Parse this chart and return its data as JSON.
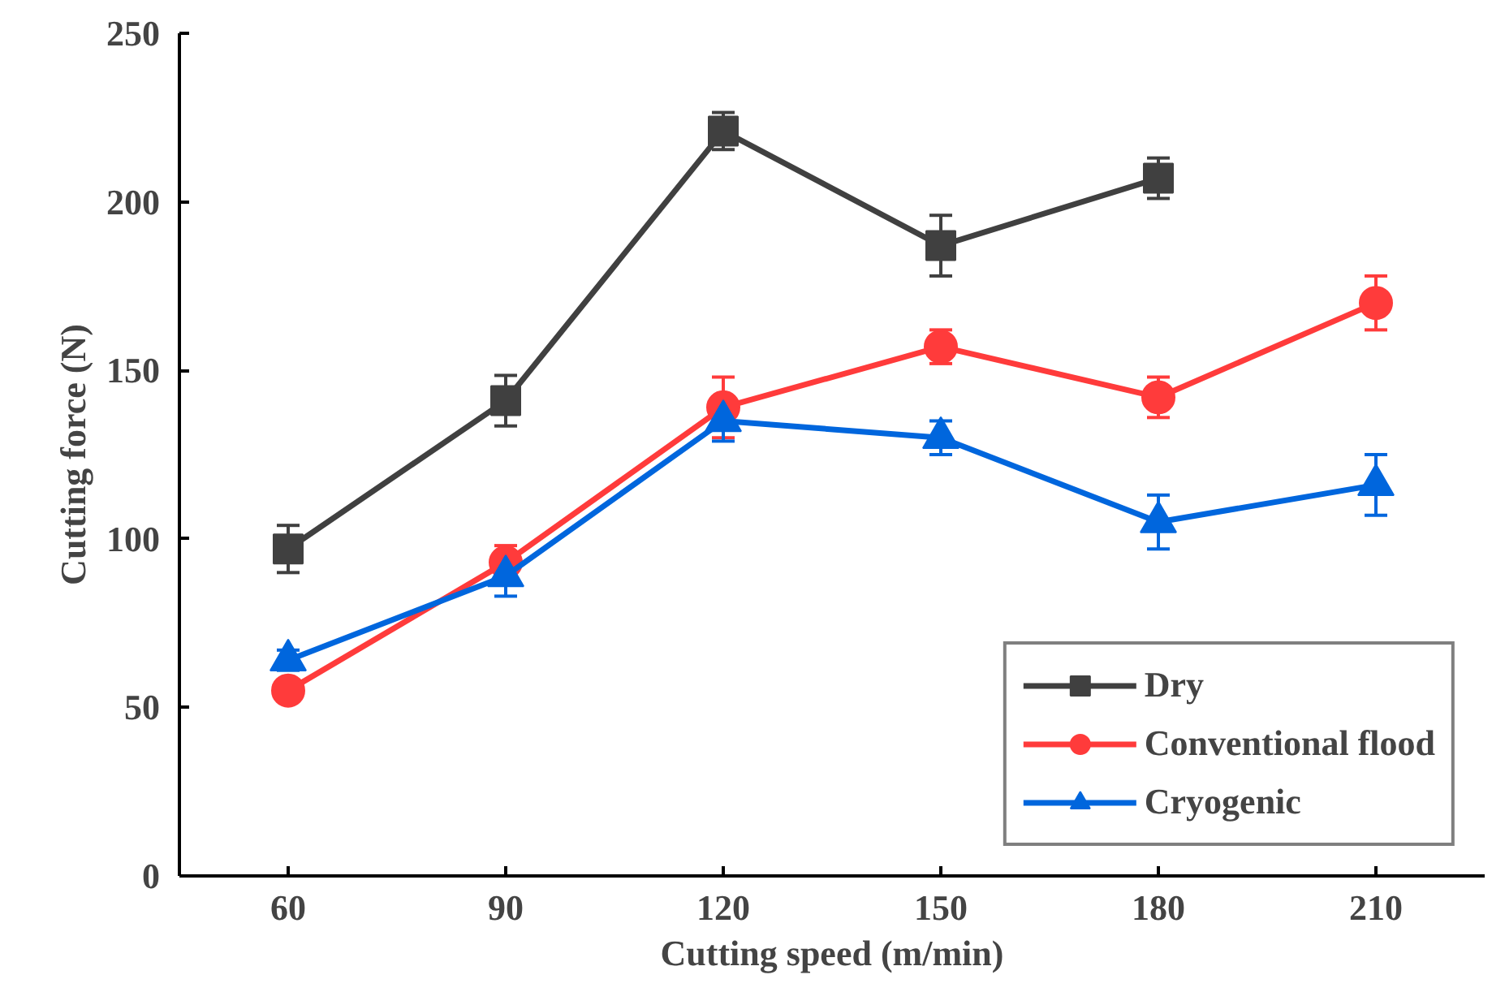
{
  "chart_data": {
    "type": "line",
    "xlabel": "Cutting speed (m/min)",
    "ylabel": "Cutting force (N)",
    "x": [
      60,
      90,
      120,
      150,
      180,
      210
    ],
    "xlim": [
      45,
      225
    ],
    "xticks": [
      60,
      90,
      120,
      150,
      180,
      210
    ],
    "ylim": [
      0,
      250
    ],
    "yticks": [
      0,
      50,
      100,
      150,
      200,
      250
    ],
    "grid": false,
    "legend": "bottom right",
    "line_style": "solid",
    "series": [
      {
        "name": "Dry",
        "color": "#404040",
        "marker": "square",
        "values": [
          97,
          141,
          221,
          187,
          207,
          null
        ],
        "errors": [
          7,
          7.5,
          5.5,
          9,
          6,
          null
        ]
      },
      {
        "name": "Conventional flood",
        "color": "#ff3b3b",
        "marker": "circle",
        "values": [
          55,
          93,
          139,
          157,
          142,
          170
        ],
        "errors": [
          null,
          5,
          9,
          5,
          6,
          8
        ]
      },
      {
        "name": "Cryogenic",
        "color": "#0066dd",
        "marker": "triangle",
        "values": [
          64,
          89,
          135,
          130,
          105,
          116
        ],
        "errors": [
          3,
          6,
          6,
          5,
          8,
          9
        ]
      }
    ]
  }
}
